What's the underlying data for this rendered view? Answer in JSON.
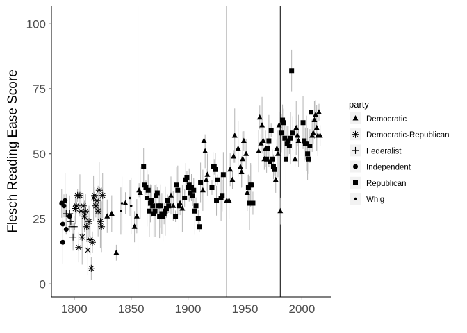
{
  "chart_data": {
    "type": "scatter",
    "title": "",
    "xlabel": "",
    "ylabel": "Flesch Reading Ease Score",
    "xlim": [
      1780,
      2026
    ],
    "ylim": [
      -5,
      107
    ],
    "x_ticks": [
      "1800",
      "1850",
      "1900",
      "1950",
      "2000"
    ],
    "y_ticks": [
      "0",
      "25",
      "50",
      "75",
      "100"
    ],
    "grid": false,
    "legend_position": "right",
    "legend_title": "party",
    "vertical_lines": [
      1856,
      1934,
      1981
    ],
    "colors": {
      "points": "#000000",
      "error_bars": "#b3b3b3",
      "vlines": "#000000",
      "axis": "#000000"
    },
    "series": [
      {
        "name": "Democratic",
        "marker": "triangle",
        "points": [
          [
            1829,
            26
          ],
          [
            1833,
            27
          ],
          [
            1837,
            12
          ],
          [
            1845,
            31
          ],
          [
            1853,
            22
          ],
          [
            1855,
            26
          ],
          [
            1857,
            36
          ],
          [
            1858,
            35
          ],
          [
            1885,
            34
          ],
          [
            1887,
            30
          ],
          [
            1893,
            31
          ],
          [
            1895,
            29
          ],
          [
            1913,
            36
          ],
          [
            1914,
            55
          ],
          [
            1915,
            51
          ],
          [
            1916,
            40
          ],
          [
            1917,
            42
          ],
          [
            1934,
            32
          ],
          [
            1936,
            32
          ],
          [
            1937,
            44
          ],
          [
            1939,
            40
          ],
          [
            1940,
            49
          ],
          [
            1941,
            57
          ],
          [
            1944,
            52
          ],
          [
            1946,
            45
          ],
          [
            1947,
            43
          ],
          [
            1948,
            48
          ],
          [
            1949,
            55
          ],
          [
            1951,
            50
          ],
          [
            1952,
            35
          ],
          [
            1962,
            51
          ],
          [
            1963,
            64
          ],
          [
            1964,
            54
          ],
          [
            1965,
            61
          ],
          [
            1966,
            55
          ],
          [
            1967,
            48
          ],
          [
            1968,
            52
          ],
          [
            1977,
            40
          ],
          [
            1978,
            52
          ],
          [
            1979,
            50
          ],
          [
            1980,
            61
          ],
          [
            1981,
            28
          ],
          [
            1994,
            48
          ],
          [
            1995,
            60
          ],
          [
            1996,
            57
          ],
          [
            1997,
            55
          ],
          [
            2009,
            57
          ],
          [
            2010,
            58
          ],
          [
            2011,
            63
          ],
          [
            2012,
            65
          ],
          [
            2013,
            60
          ],
          [
            2014,
            57
          ],
          [
            2015,
            66
          ],
          [
            2016,
            57
          ]
        ]
      },
      {
        "name": "Democratic-Republican",
        "marker": "asterisk",
        "points": [
          [
            1801,
            29
          ],
          [
            1802,
            30
          ],
          [
            1803,
            34
          ],
          [
            1804,
            14
          ],
          [
            1805,
            34
          ],
          [
            1806,
            28
          ],
          [
            1807,
            18
          ],
          [
            1808,
            30
          ],
          [
            1809,
            26
          ],
          [
            1810,
            28
          ],
          [
            1811,
            22
          ],
          [
            1812,
            13
          ],
          [
            1813,
            24
          ],
          [
            1814,
            17
          ],
          [
            1815,
            6
          ],
          [
            1816,
            16
          ],
          [
            1817,
            33
          ],
          [
            1818,
            34
          ],
          [
            1819,
            30
          ],
          [
            1820,
            32
          ],
          [
            1821,
            28
          ],
          [
            1822,
            36
          ],
          [
            1823,
            24
          ],
          [
            1824,
            22
          ],
          [
            1825,
            34
          ]
        ]
      },
      {
        "name": "Federalist",
        "marker": "plus",
        "points": [
          [
            1793,
            27
          ],
          [
            1796,
            27
          ],
          [
            1797,
            24
          ],
          [
            1798,
            22
          ],
          [
            1799,
            18
          ],
          [
            1800,
            22
          ]
        ]
      },
      {
        "name": "Independent",
        "marker": "circle",
        "points": [
          [
            1789,
            31
          ],
          [
            1790,
            16
          ],
          [
            1790,
            23
          ],
          [
            1791,
            30
          ],
          [
            1792,
            32
          ],
          [
            1793,
            21
          ],
          [
            1796,
            26
          ]
        ]
      },
      {
        "name": "Republican",
        "marker": "square",
        "points": [
          [
            1861,
            45
          ],
          [
            1862,
            38
          ],
          [
            1863,
            37
          ],
          [
            1864,
            33
          ],
          [
            1865,
            36
          ],
          [
            1866,
            28
          ],
          [
            1867,
            31
          ],
          [
            1868,
            32
          ],
          [
            1869,
            30
          ],
          [
            1870,
            27
          ],
          [
            1871,
            28
          ],
          [
            1872,
            34
          ],
          [
            1873,
            35
          ],
          [
            1874,
            30
          ],
          [
            1875,
            26
          ],
          [
            1876,
            30
          ],
          [
            1877,
            27
          ],
          [
            1878,
            26
          ],
          [
            1879,
            27
          ],
          [
            1880,
            28
          ],
          [
            1881,
            29
          ],
          [
            1882,
            32
          ],
          [
            1883,
            30
          ],
          [
            1889,
            26
          ],
          [
            1890,
            38
          ],
          [
            1891,
            36
          ],
          [
            1892,
            30
          ],
          [
            1897,
            33
          ],
          [
            1898,
            40
          ],
          [
            1899,
            41
          ],
          [
            1900,
            37
          ],
          [
            1901,
            38
          ],
          [
            1902,
            35
          ],
          [
            1903,
            37
          ],
          [
            1904,
            34
          ],
          [
            1905,
            36
          ],
          [
            1906,
            28
          ],
          [
            1907,
            30
          ],
          [
            1909,
            25
          ],
          [
            1910,
            22
          ],
          [
            1911,
            39
          ],
          [
            1921,
            37
          ],
          [
            1922,
            45
          ],
          [
            1923,
            45
          ],
          [
            1924,
            44
          ],
          [
            1925,
            32
          ],
          [
            1926,
            40
          ],
          [
            1929,
            33
          ],
          [
            1930,
            34
          ],
          [
            1931,
            42
          ],
          [
            1953,
            37
          ],
          [
            1954,
            31
          ],
          [
            1955,
            38
          ],
          [
            1956,
            38
          ],
          [
            1957,
            31
          ],
          [
            1969,
            48
          ],
          [
            1970,
            52
          ],
          [
            1971,
            55
          ],
          [
            1972,
            47
          ],
          [
            1973,
            59
          ],
          [
            1974,
            48
          ],
          [
            1975,
            45
          ],
          [
            1976,
            44
          ],
          [
            1982,
            58
          ],
          [
            1983,
            63
          ],
          [
            1984,
            62
          ],
          [
            1985,
            56
          ],
          [
            1986,
            48
          ],
          [
            1987,
            54
          ],
          [
            1988,
            55
          ],
          [
            1989,
            53
          ],
          [
            1990,
            56
          ],
          [
            1991,
            82
          ],
          [
            1992,
            58
          ],
          [
            2001,
            62
          ],
          [
            2002,
            55
          ],
          [
            2003,
            54
          ],
          [
            2004,
            54
          ],
          [
            2005,
            50
          ],
          [
            2006,
            48
          ],
          [
            2007,
            53
          ],
          [
            2008,
            66
          ]
        ]
      },
      {
        "name": "Whig",
        "marker": "dot",
        "points": [
          [
            1841,
            28
          ],
          [
            1842,
            31
          ],
          [
            1849,
            33
          ],
          [
            1850,
            30
          ]
        ]
      }
    ]
  }
}
